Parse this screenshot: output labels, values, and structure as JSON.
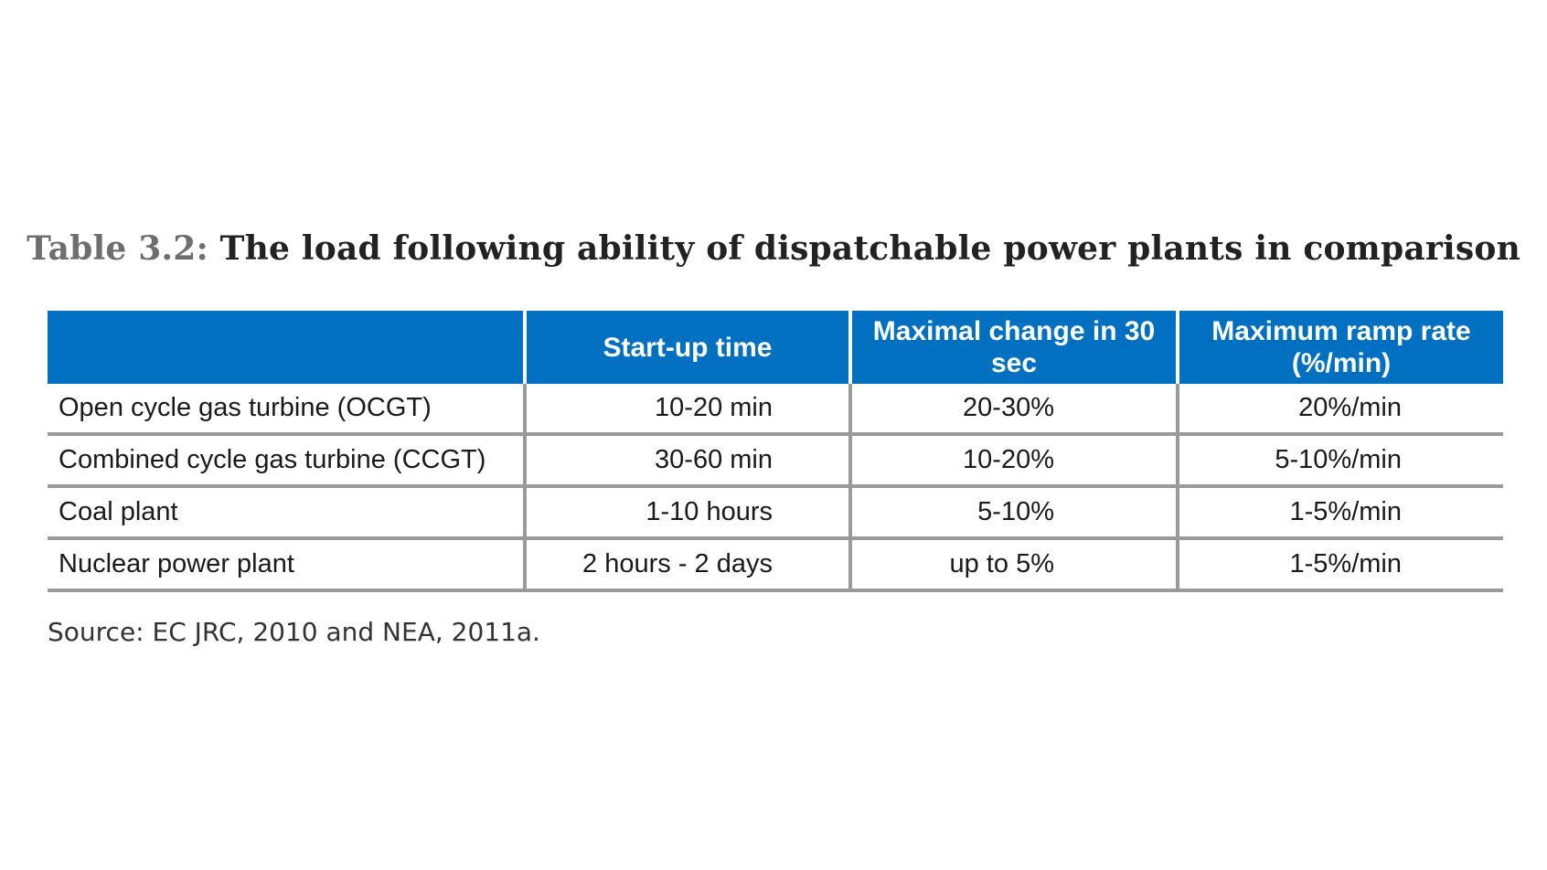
{
  "caption": {
    "label": "Table 3.2:",
    "title": "The load following ability of dispatchable power plants in comparison"
  },
  "table": {
    "headers": [
      "",
      "Start-up time",
      "Maximal change in 30 sec",
      "Maximum ramp rate (%/min)"
    ],
    "rows": [
      [
        "Open cycle gas turbine (OCGT)",
        "10-20 min",
        "20-30%",
        "20%/min"
      ],
      [
        "Combined cycle gas turbine (CCGT)",
        "30-60 min",
        "10-20%",
        "5-10%/min"
      ],
      [
        "Coal plant",
        "1-10 hours",
        "5-10%",
        "1-5%/min"
      ],
      [
        "Nuclear power plant",
        "2 hours - 2 days",
        "up to 5%",
        "1-5%/min"
      ]
    ]
  },
  "source": "Source: EC JRC, 2010 and NEA, 2011a.",
  "colors": {
    "header_background": "#0170c1",
    "header_text": "#ffffff",
    "row_border": "#9a9a9c",
    "caption_label": "#6e6e6e"
  }
}
